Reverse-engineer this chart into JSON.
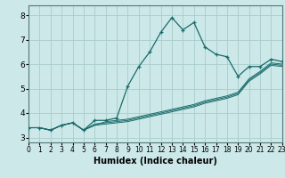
{
  "title": "",
  "xlabel": "Humidex (Indice chaleur)",
  "xlim": [
    0,
    23
  ],
  "ylim": [
    2.8,
    8.4
  ],
  "xticks": [
    0,
    1,
    2,
    3,
    4,
    5,
    6,
    7,
    8,
    9,
    10,
    11,
    12,
    13,
    14,
    15,
    16,
    17,
    18,
    19,
    20,
    21,
    22,
    23
  ],
  "yticks": [
    3,
    4,
    5,
    6,
    7,
    8
  ],
  "background_color": "#cce8e8",
  "grid_color": "#aacccc",
  "line_color": "#1a6b6b",
  "series_main": [
    3.4,
    3.4,
    3.3,
    3.5,
    3.6,
    3.3,
    3.7,
    3.7,
    3.8,
    5.1,
    5.9,
    6.5,
    7.3,
    7.9,
    7.4,
    7.7,
    6.7,
    6.4,
    6.3,
    5.5,
    5.9,
    5.9,
    6.2,
    6.1
  ],
  "series_other": [
    [
      3.4,
      3.4,
      3.3,
      3.5,
      3.6,
      3.3,
      3.5,
      3.65,
      3.7,
      3.75,
      3.85,
      3.95,
      4.05,
      4.15,
      4.25,
      4.35,
      4.5,
      4.6,
      4.7,
      4.85,
      5.4,
      5.7,
      6.05,
      6.0
    ],
    [
      3.4,
      3.4,
      3.3,
      3.5,
      3.6,
      3.3,
      3.55,
      3.6,
      3.65,
      3.7,
      3.8,
      3.9,
      4.0,
      4.1,
      4.2,
      4.3,
      4.45,
      4.55,
      4.65,
      4.8,
      5.35,
      5.65,
      6.0,
      5.95
    ],
    [
      3.4,
      3.4,
      3.3,
      3.5,
      3.6,
      3.3,
      3.5,
      3.55,
      3.6,
      3.65,
      3.75,
      3.85,
      3.95,
      4.05,
      4.15,
      4.25,
      4.4,
      4.5,
      4.6,
      4.75,
      5.3,
      5.6,
      5.95,
      5.9
    ]
  ]
}
